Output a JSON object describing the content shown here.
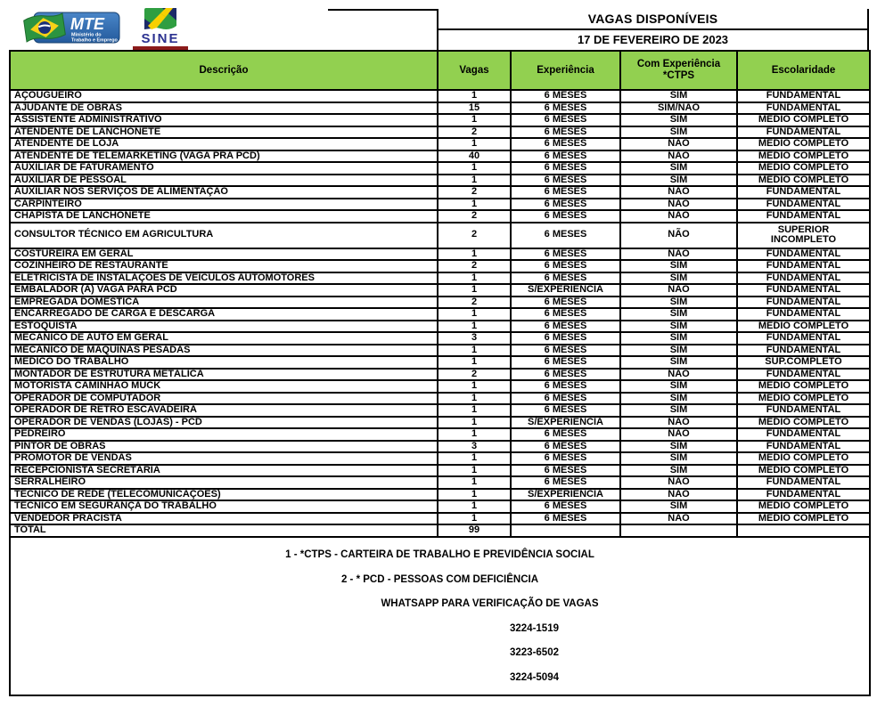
{
  "header": {
    "title": "VAGAS DISPONÍVEIS",
    "date": "17 DE FEVEREIRO DE 2023",
    "logos": {
      "mte": {
        "acronym": "MTE",
        "subtitle_line1": "Ministério do",
        "subtitle_line2": "Trabalho e Emprego"
      },
      "sine": {
        "name": "SINE"
      }
    }
  },
  "colors": {
    "header_green": "#92d050",
    "border": "#000000",
    "mte_blue": "#2e6db4",
    "sine_navy": "#2b3190",
    "sine_green": "#2f9e41",
    "sine_yellow": "#f8d000",
    "strip_maroon": "#8b1a1a"
  },
  "table": {
    "columns": [
      "Descrição",
      "Vagas",
      "Experiência",
      "Com Experiência\n*CTPS",
      "Escolaridade"
    ],
    "rows": [
      {
        "description": "AÇOUGUEIRO",
        "vagas": "1",
        "experiencia": "6 MESES",
        "ctps": "SIM",
        "escolaridade": "FUNDAMENTAL"
      },
      {
        "description": "AJUDANTE DE OBRAS",
        "vagas": "15",
        "experiencia": "6 MESES",
        "ctps": "SIM/NÃO",
        "escolaridade": "FUNDAMENTAL"
      },
      {
        "description": "ASSISTENTE ADMINISTRATIVO",
        "vagas": "1",
        "experiencia": "6 MESES",
        "ctps": "SIM",
        "escolaridade": "MÉDIO COMPLETO"
      },
      {
        "description": "ATENDENTE DE LANCHONETE",
        "vagas": "2",
        "experiencia": "6 MESES",
        "ctps": "SIM",
        "escolaridade": "FUNDAMENTAL"
      },
      {
        "description": "ATENDENTE DE LOJA",
        "vagas": "1",
        "experiencia": "6 MESES",
        "ctps": "NÃO",
        "escolaridade": "MÉDIO COMPLETO"
      },
      {
        "description": "ATENDENTE DE TELEMARKETING (VAGA PRA PCD)",
        "vagas": "40",
        "experiencia": "6 MESES",
        "ctps": "NÃO",
        "escolaridade": "MÉDIO COMPLETO"
      },
      {
        "description": "AUXILIAR DE FATURAMENTO",
        "vagas": "1",
        "experiencia": "6 MESES",
        "ctps": "SIM",
        "escolaridade": "MÉDIO COMPLETO"
      },
      {
        "description": "AUXILIAR DE PESSOAL",
        "vagas": "1",
        "experiencia": "6 MESES",
        "ctps": "SIM",
        "escolaridade": "MÉDIO COMPLETO"
      },
      {
        "description": "AUXILIAR NOS SERVIÇOS DE ALIMENTAÇÃO",
        "vagas": "2",
        "experiencia": "6 MESES",
        "ctps": "NÃO",
        "escolaridade": "FUNDAMENTAL"
      },
      {
        "description": "CARPINTEIRO",
        "vagas": "1",
        "experiencia": "6 MESES",
        "ctps": "NÃO",
        "escolaridade": "FUNDAMENTAL"
      },
      {
        "description": "CHAPISTA DE LANCHONETE",
        "vagas": "2",
        "experiencia": "6 MESES",
        "ctps": "NÃO",
        "escolaridade": "FUNDAMENTAL"
      },
      {
        "description": "CONSULTOR TÉCNICO EM AGRICULTURA",
        "vagas": "2",
        "experiencia": "6 MESES",
        "ctps": "NÃO",
        "escolaridade": "SUPERIOR\nINCOMPLETO",
        "tall": true
      },
      {
        "description": "COSTUREIRA EM GERAL",
        "vagas": "1",
        "experiencia": "6 MESES",
        "ctps": "NÃO",
        "escolaridade": "FUNDAMENTAL"
      },
      {
        "description": "COZINHEIRO DE RESTAURANTE",
        "vagas": "2",
        "experiencia": "6 MESES",
        "ctps": "SIM",
        "escolaridade": "FUNDAMENTAL"
      },
      {
        "description": "ELETRICISTA DE INSTALAÇÕES DE VEÍCULOS AUTOMOTORES",
        "vagas": "1",
        "experiencia": "6 MESES",
        "ctps": "SIM",
        "escolaridade": "FUNDAMENTAL"
      },
      {
        "description": "EMBALADOR (A)  VAGA PARA PCD",
        "vagas": "1",
        "experiencia": "S/EXPERIÊNCIA",
        "ctps": "NÃO",
        "escolaridade": "FUNDAMENTAL"
      },
      {
        "description": "EMPREGADA DOMÉSTICA",
        "vagas": "2",
        "experiencia": "6 MESES",
        "ctps": "SIM",
        "escolaridade": "FUNDAMENTAL"
      },
      {
        "description": "ENCARREGADO DE CARGA E DESCARGA",
        "vagas": "1",
        "experiencia": "6 MESES",
        "ctps": "SIM",
        "escolaridade": "FUNDAMENTAL"
      },
      {
        "description": "ESTOQUISTA",
        "vagas": "1",
        "experiencia": "6 MESES",
        "ctps": "SIM",
        "escolaridade": "MÉDIO COMPLETO"
      },
      {
        "description": "MECÂNICO DE AUTO EM GERAL",
        "vagas": "3",
        "experiencia": "6 MESES",
        "ctps": "SIM",
        "escolaridade": "FUNDAMENTAL"
      },
      {
        "description": "MECÂNICO DE MAQUINAS PESADAS",
        "vagas": "1",
        "experiencia": "6 MESES",
        "ctps": "SIM",
        "escolaridade": "FUNDAMENTAL"
      },
      {
        "description": "MEDICO DO TRABALHO",
        "vagas": "1",
        "experiencia": "6 MESES",
        "ctps": "SIM",
        "escolaridade": "SUP.COMPLETO"
      },
      {
        "description": "MONTADOR DE ESTRUTURA METÁLICA",
        "vagas": "2",
        "experiencia": "6 MESES",
        "ctps": "NÃO",
        "escolaridade": "FUNDAMENTAL"
      },
      {
        "description": "MOTORISTA CAMINHAO MUCK",
        "vagas": "1",
        "experiencia": "6 MESES",
        "ctps": "SIM",
        "escolaridade": "MÉDIO COMPLETO"
      },
      {
        "description": "OPERADOR DE COMPUTADOR",
        "vagas": "1",
        "experiencia": "6 MESES",
        "ctps": "SIM",
        "escolaridade": "MÉDIO COMPLETO"
      },
      {
        "description": "OPERADOR DE RETRO ESCAVADEIRA",
        "vagas": "1",
        "experiencia": "6 MESES",
        "ctps": "SIM",
        "escolaridade": "FUNDAMENTAL"
      },
      {
        "description": "OPERADOR DE VENDAS (LOJAS) - PCD",
        "vagas": "1",
        "experiencia": "S/EXPERIÊNCIA",
        "ctps": "NÃO",
        "escolaridade": "MÉDIO COMPLETO"
      },
      {
        "description": "PEDREIRO",
        "vagas": "1",
        "experiencia": "6 MESES",
        "ctps": "NÃO",
        "escolaridade": "FUNDAMENTAL"
      },
      {
        "description": "PINTOR DE OBRAS",
        "vagas": "3",
        "experiencia": "6 MESES",
        "ctps": "SIM",
        "escolaridade": "FUNDAMENTAL"
      },
      {
        "description": "PROMOTOR DE VENDAS",
        "vagas": "1",
        "experiencia": "6 MESES",
        "ctps": "SIM",
        "escolaridade": "MÉDIO COMPLETO"
      },
      {
        "description": "RECEPCIONISTA SECRETÁRIA",
        "vagas": "1",
        "experiencia": "6 MESES",
        "ctps": "SIM",
        "escolaridade": "MÉDIO COMPLETO"
      },
      {
        "description": "SERRALHEIRO",
        "vagas": "1",
        "experiencia": "6 MESES",
        "ctps": "NÃO",
        "escolaridade": "FUNDAMENTAL"
      },
      {
        "description": "TÉCNICO DE REDE (TELECOMUNICAÇÕES)",
        "vagas": "1",
        "experiencia": "S/EXPERIÊNCIA",
        "ctps": "NÃO",
        "escolaridade": "FUNDAMENTAL"
      },
      {
        "description": "TECNICO EM SEGURANÇA DO TRABALHO",
        "vagas": "1",
        "experiencia": "6 MESES",
        "ctps": "SIM",
        "escolaridade": "MÉDIO COMPLETO"
      },
      {
        "description": "VENDEDOR PRACISTA",
        "vagas": "1",
        "experiencia": "6 MESES",
        "ctps": "NÃO",
        "escolaridade": "MÉDIO COMPLETO"
      }
    ],
    "total": {
      "label": "TOTAL",
      "vagas": "99",
      "experiencia": "",
      "ctps": "",
      "escolaridade": ""
    }
  },
  "footer": {
    "notes": [
      "1 - *CTPS - CARTEIRA DE TRABALHO E PREVIDÊNCIA SOCIAL",
      "2 - * PCD - PESSOAS COM DEFICIÊNCIA"
    ],
    "whatsapp_label": "WHATSAPP PARA VERIFICAÇÃO DE VAGAS",
    "phones": [
      "3224-1519",
      "3223-6502",
      "3224-5094"
    ]
  }
}
